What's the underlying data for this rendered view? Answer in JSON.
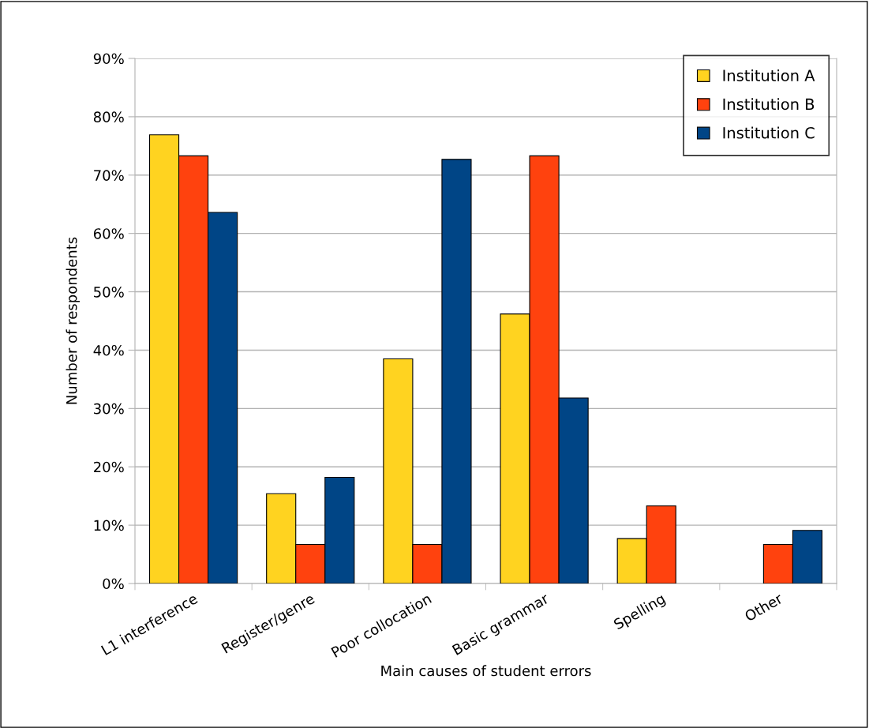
{
  "chart_data": {
    "type": "bar",
    "xlabel": "Main causes of student errors",
    "ylabel": "Number of respondents",
    "categories": [
      "L1 interference",
      "Register/genre",
      "Poor collocation",
      "Basic grammar",
      "Spelling",
      "Other"
    ],
    "series": [
      {
        "name": "Institution A",
        "color": "#ffd320",
        "values": [
          76.9,
          15.4,
          38.5,
          46.2,
          7.7,
          0
        ]
      },
      {
        "name": "Institution B",
        "color": "#ff420e",
        "values": [
          73.3,
          6.7,
          6.7,
          73.3,
          13.3,
          6.7
        ]
      },
      {
        "name": "Institution C",
        "color": "#004586",
        "values": [
          63.6,
          18.2,
          72.7,
          31.8,
          0,
          9.1
        ]
      }
    ],
    "ylim": [
      0,
      90
    ],
    "yticks": [
      {
        "value": 0,
        "label": "0%"
      },
      {
        "value": 10,
        "label": "10%"
      },
      {
        "value": 20,
        "label": "20%"
      },
      {
        "value": 30,
        "label": "30%"
      },
      {
        "value": 40,
        "label": "40%"
      },
      {
        "value": 50,
        "label": "50%"
      },
      {
        "value": 60,
        "label": "60%"
      },
      {
        "value": 70,
        "label": "70%"
      },
      {
        "value": 80,
        "label": "80%"
      },
      {
        "value": 90,
        "label": "90%"
      }
    ],
    "grid": "y",
    "legend": "top right"
  }
}
